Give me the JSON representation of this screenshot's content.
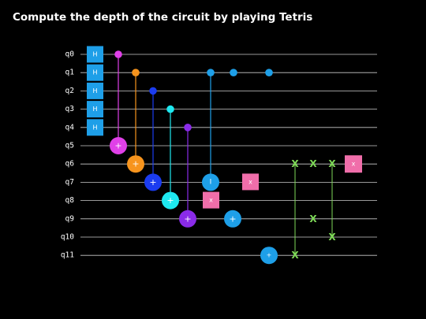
{
  "title": "Compute the depth of the circuit by playing Tetris",
  "qubits": [
    "q0",
    "q1",
    "q2",
    "q3",
    "q4",
    "q5",
    "q6",
    "q7",
    "q8",
    "q9",
    "q10",
    "q11"
  ],
  "colors": {
    "wire": "#cccccc",
    "hadamard": "#1e9fe8",
    "magenta": "#e040e8",
    "orange": "#f7941d",
    "blue": "#1b3cf0",
    "cyan": "#1ee8f0",
    "violet": "#8a2be8",
    "skyblue": "#1e9fe8",
    "pink": "#f06eaa",
    "green": "#7ed957"
  },
  "gates": {
    "h_label": "H",
    "plus": "+",
    "x": "X",
    "x_small": "x",
    "i": "I"
  }
}
